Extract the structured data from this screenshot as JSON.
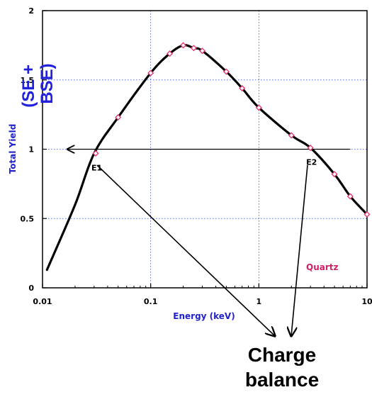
{
  "chart_data": {
    "type": "line",
    "xscale": "log",
    "xlim": [
      0.01,
      10
    ],
    "ylim": [
      0,
      2
    ],
    "grid": true,
    "xlabel": "Energy (keV)",
    "ylabel": "Total Yield",
    "x_ticks": [
      "0.01",
      "0.1",
      "1",
      "10"
    ],
    "y_ticks": [
      "0",
      "0.5",
      "1",
      "1.5",
      "2"
    ],
    "series": [
      {
        "name": "Quartz",
        "color": "#000000",
        "marker_color": "#e03070",
        "x": [
          0.011,
          0.02,
          0.03,
          0.05,
          0.1,
          0.15,
          0.2,
          0.25,
          0.3,
          0.5,
          0.7,
          1.0,
          2.0,
          3.0,
          5.0,
          7.0,
          10.0
        ],
        "y": [
          0.13,
          0.6,
          0.97,
          1.23,
          1.55,
          1.69,
          1.75,
          1.73,
          1.71,
          1.56,
          1.44,
          1.3,
          1.1,
          1.01,
          0.82,
          0.66,
          0.53
        ],
        "marker_x": [
          0.031,
          0.05,
          0.1,
          0.15,
          0.2,
          0.25,
          0.3,
          0.5,
          0.7,
          1.0,
          2.0,
          3.0,
          5.0,
          7.0,
          10.0
        ],
        "marker_y": [
          0.97,
          1.23,
          1.55,
          1.69,
          1.75,
          1.73,
          1.71,
          1.56,
          1.44,
          1.3,
          1.1,
          1.01,
          0.82,
          0.66,
          0.53
        ]
      }
    ],
    "reference_line": {
      "y": 1,
      "x_from": 7,
      "x_to": 0.017,
      "arrow": "left"
    },
    "annotations": [
      {
        "text": "E1",
        "x": 0.031,
        "y": 0.97
      },
      {
        "text": "E2",
        "x": 3.0,
        "y": 1.01
      }
    ],
    "overlay_text": {
      "ylabel_extra": "(SE + BSE)",
      "callout": [
        "Charge",
        "balance"
      ]
    }
  }
}
